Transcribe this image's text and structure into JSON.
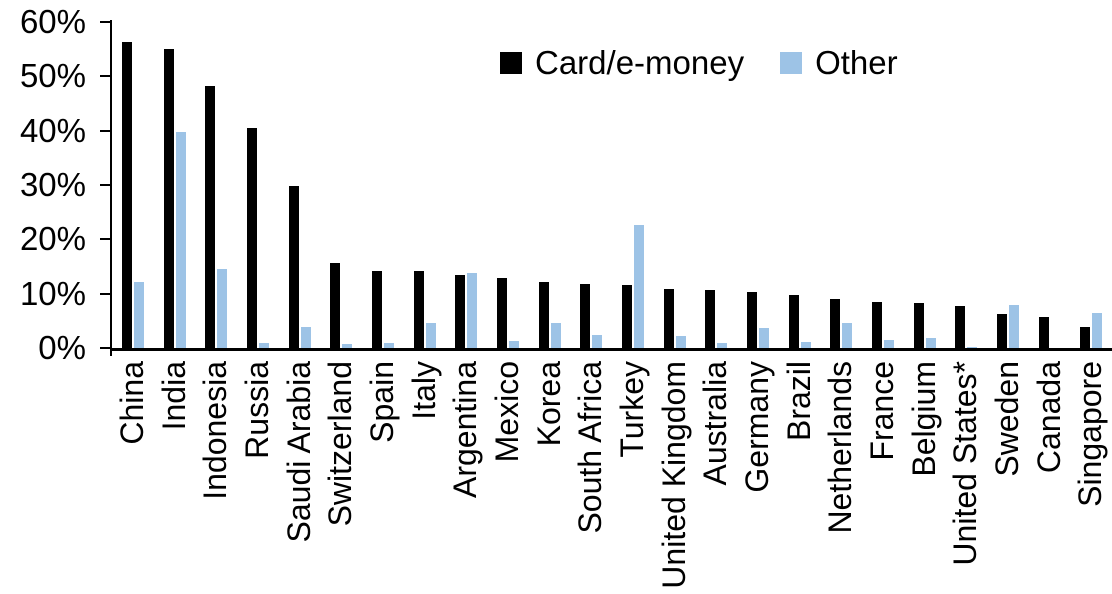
{
  "legend": {
    "items": [
      {
        "label": "Card/e-money",
        "color": "#000000"
      },
      {
        "label": "Other",
        "color": "#9DC3E6"
      }
    ]
  },
  "axis_colors": {
    "line": "#000000",
    "text": "#000000"
  },
  "chart_data": {
    "type": "bar",
    "title": "",
    "xlabel": "",
    "ylabel": "",
    "unit": "%",
    "grid": false,
    "legend_position": "top-center",
    "ylim": [
      0,
      60
    ],
    "yticks": [
      "0%",
      "10%",
      "20%",
      "30%",
      "40%",
      "50%",
      "60%"
    ],
    "categories": [
      "China",
      "India",
      "Indonesia",
      "Russia",
      "Saudi Arabia",
      "Switzerland",
      "Spain",
      "Italy",
      "Argentina",
      "Mexico",
      "Korea",
      "South Africa",
      "Turkey",
      "United Kingdom",
      "Australia",
      "Germany",
      "Brazil",
      "Netherlands",
      "France",
      "Belgium",
      "United States*",
      "Sweden",
      "Canada",
      "Singapore"
    ],
    "series": [
      {
        "name": "Card/e-money",
        "color": "#000000",
        "values": [
          56.3,
          55.0,
          48.2,
          40.5,
          29.9,
          15.6,
          14.2,
          14.1,
          13.4,
          12.9,
          12.2,
          11.7,
          11.6,
          10.9,
          10.6,
          10.3,
          9.8,
          9.0,
          8.4,
          8.2,
          7.8,
          6.3,
          5.7,
          3.8
        ]
      },
      {
        "name": "Other",
        "color": "#9DC3E6",
        "values": [
          12.2,
          39.7,
          14.5,
          1.0,
          3.9,
          0.8,
          1.0,
          4.6,
          13.8,
          1.3,
          4.6,
          2.4,
          22.6,
          2.2,
          0.9,
          3.7,
          1.1,
          4.6,
          1.4,
          1.9,
          0.2,
          8.0,
          0.0,
          6.5
        ]
      }
    ]
  }
}
